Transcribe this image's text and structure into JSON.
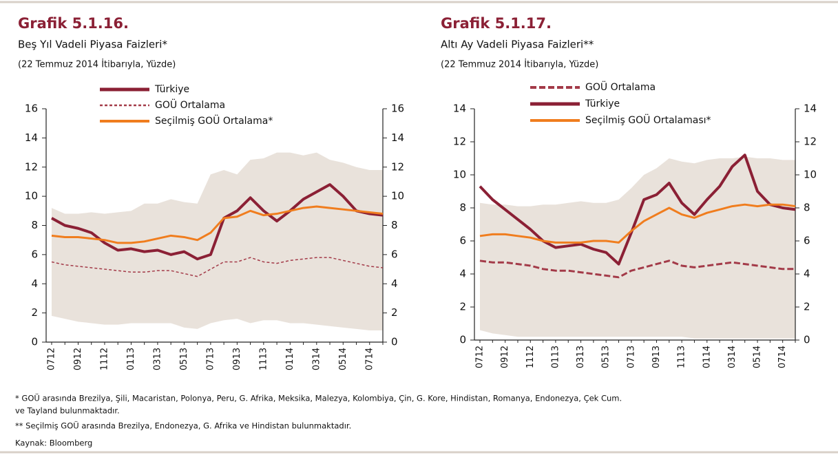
{
  "chart_data": [
    {
      "type": "line",
      "title": "Grafik 5.1.16.",
      "subtitle": "Beş Yıl Vadeli Piyasa Faizleri*",
      "note": "(22 Temmuz 2014 İtibarıyla, Yüzde)",
      "categories": [
        "0712",
        null,
        "0912",
        null,
        "1112",
        null,
        "0113",
        null,
        "0313",
        null,
        "0513",
        null,
        "0713",
        null,
        "0913",
        null,
        "1113",
        null,
        "0114",
        null,
        "0314",
        null,
        "0514",
        null,
        "0714",
        null
      ],
      "ylim": [
        0,
        16
      ],
      "yticks": [
        0,
        2,
        4,
        6,
        8,
        10,
        12,
        14,
        16
      ],
      "band": {
        "color": "#e9e2db",
        "upper": [
          9.2,
          8.8,
          8.8,
          8.9,
          8.8,
          8.9,
          9.0,
          9.5,
          9.5,
          9.8,
          9.6,
          9.5,
          11.5,
          11.8,
          11.5,
          12.5,
          12.6,
          13.0,
          13.0,
          12.8,
          13.0,
          12.5,
          12.3,
          12.0,
          11.8,
          11.8
        ],
        "lower": [
          1.8,
          1.6,
          1.4,
          1.3,
          1.2,
          1.2,
          1.3,
          1.3,
          1.3,
          1.3,
          1.0,
          0.9,
          1.3,
          1.5,
          1.6,
          1.3,
          1.5,
          1.5,
          1.3,
          1.3,
          1.2,
          1.1,
          1.0,
          0.9,
          0.8,
          0.8
        ]
      },
      "series": [
        {
          "name": "Türkiye",
          "color": "#8b2035",
          "width": 4,
          "dashed": false,
          "values": [
            8.5,
            8.0,
            7.8,
            7.5,
            6.8,
            6.3,
            6.4,
            6.2,
            6.3,
            6.0,
            6.2,
            5.7,
            6.0,
            8.5,
            9.0,
            9.9,
            9.0,
            8.3,
            9.0,
            9.8,
            10.3,
            10.8,
            10.0,
            9.0,
            8.8,
            8.7
          ]
        },
        {
          "name": "GOÜ Ortalama",
          "color": "#a33a48",
          "width": 1.5,
          "dashed": true,
          "values": [
            5.5,
            5.3,
            5.2,
            5.1,
            5.0,
            4.9,
            4.8,
            4.8,
            4.9,
            4.9,
            4.7,
            4.5,
            5.0,
            5.5,
            5.5,
            5.8,
            5.5,
            5.4,
            5.6,
            5.7,
            5.8,
            5.8,
            5.6,
            5.4,
            5.2,
            5.1
          ]
        },
        {
          "name": "Seçilmiş GOÜ Ortalama*",
          "color": "#f07d1e",
          "width": 3,
          "dashed": false,
          "values": [
            7.3,
            7.2,
            7.2,
            7.1,
            7.0,
            6.8,
            6.8,
            6.9,
            7.1,
            7.3,
            7.2,
            7.0,
            7.5,
            8.5,
            8.6,
            9.0,
            8.7,
            8.8,
            9.0,
            9.2,
            9.3,
            9.2,
            9.1,
            9.0,
            8.9,
            8.8
          ]
        }
      ]
    },
    {
      "type": "line",
      "title": "Grafik 5.1.17.",
      "subtitle": "Altı Ay Vadeli Piyasa Faizleri**",
      "note": "(22 Temmuz 2014 İtibarıyla, Yüzde)",
      "categories": [
        "0712",
        null,
        "0912",
        null,
        "1112",
        null,
        "0113",
        null,
        "0313",
        null,
        "0513",
        null,
        "0713",
        null,
        "0913",
        null,
        "1113",
        null,
        "0114",
        null,
        "0314",
        null,
        "0514",
        null,
        "0714",
        null
      ],
      "ylim": [
        0,
        14
      ],
      "yticks": [
        0,
        2,
        4,
        6,
        8,
        10,
        12,
        14
      ],
      "band": {
        "color": "#e9e2db",
        "upper": [
          8.3,
          8.2,
          8.2,
          8.1,
          8.1,
          8.2,
          8.2,
          8.3,
          8.4,
          8.3,
          8.3,
          8.5,
          9.2,
          10.0,
          10.4,
          11.0,
          10.8,
          10.7,
          10.9,
          11.0,
          11.0,
          11.1,
          11.0,
          11.0,
          10.9,
          10.9
        ],
        "lower": [
          0.6,
          0.4,
          0.3,
          0.2,
          0.2,
          0.2,
          0.2,
          0.2,
          0.2,
          0.2,
          0.2,
          0.2,
          0.2,
          0.2,
          0.2,
          0.2,
          0.2,
          0.1,
          0.1,
          0.1,
          0.1,
          0.1,
          0.1,
          0.1,
          0.1,
          0.1
        ]
      },
      "series": [
        {
          "name": "GOÜ Ortalama",
          "color": "#a33a48",
          "width": 3,
          "dashed": true,
          "values": [
            4.8,
            4.7,
            4.7,
            4.6,
            4.5,
            4.3,
            4.2,
            4.2,
            4.1,
            4.0,
            3.9,
            3.8,
            4.2,
            4.4,
            4.6,
            4.8,
            4.5,
            4.4,
            4.5,
            4.6,
            4.7,
            4.6,
            4.5,
            4.4,
            4.3,
            4.3
          ]
        },
        {
          "name": "Türkiye",
          "color": "#8b2035",
          "width": 4,
          "dashed": false,
          "values": [
            9.3,
            8.5,
            7.9,
            7.3,
            6.7,
            6.0,
            5.6,
            5.7,
            5.8,
            5.5,
            5.3,
            4.6,
            6.5,
            8.5,
            8.8,
            9.5,
            8.3,
            7.6,
            8.5,
            9.3,
            10.5,
            11.2,
            9.0,
            8.2,
            8.0,
            7.9
          ]
        },
        {
          "name": "Seçilmiş GOÜ Ortalaması*",
          "color": "#f07d1e",
          "width": 3,
          "dashed": false,
          "values": [
            6.3,
            6.4,
            6.4,
            6.3,
            6.2,
            6.0,
            5.9,
            5.9,
            5.9,
            6.0,
            6.0,
            5.9,
            6.6,
            7.2,
            7.6,
            8.0,
            7.6,
            7.4,
            7.7,
            7.9,
            8.1,
            8.2,
            8.1,
            8.2,
            8.2,
            8.1
          ]
        }
      ]
    }
  ],
  "footnotes": [
    "* GOÜ arasında Brezilya, Şili, Macaristan, Polonya, Peru, G. Afrika, Meksika, Malezya, Kolombiya, Çin, G. Kore, Hindistan, Romanya, Endonezya, Çek Cum.",
    "ve Tayland bulunmaktadır.",
    "** Seçilmiş GOÜ arasında Brezilya, Endonezya, G. Afrika ve Hindistan bulunmaktadır.",
    "Kaynak: Bloomberg"
  ]
}
